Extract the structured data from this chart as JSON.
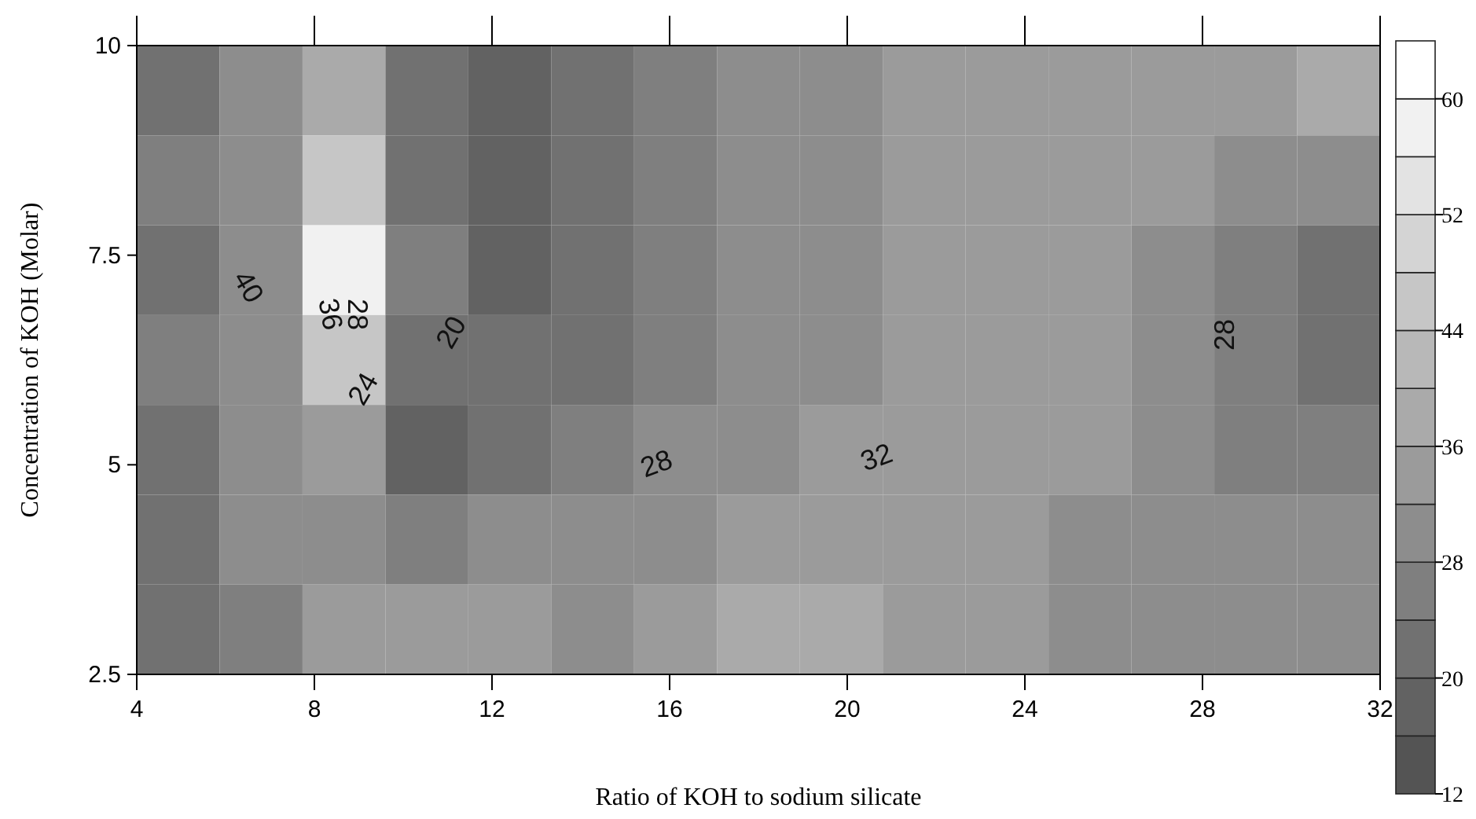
{
  "chart_data": {
    "type": "heatmap",
    "xlabel": "Ratio of KOH to sodium silicate",
    "ylabel": "Concentration of KOH (Molar)",
    "xlim": [
      4,
      32
    ],
    "xticks": [
      4,
      8,
      12,
      16,
      20,
      24,
      28,
      32
    ],
    "ylim": [
      2.5,
      10
    ],
    "yticks": [
      2.5,
      5,
      7.5,
      10
    ],
    "cells": [
      [
        22,
        28,
        36,
        20,
        18,
        22,
        27,
        29,
        31,
        33,
        34,
        34,
        34,
        35,
        37
      ],
      [
        26,
        30,
        44,
        22,
        18,
        22,
        27,
        29,
        31,
        33,
        34,
        34,
        32,
        30,
        28
      ],
      [
        22,
        31,
        56,
        24,
        19,
        23,
        27,
        29,
        31,
        33,
        34,
        33,
        30,
        26,
        22
      ],
      [
        26,
        31,
        44,
        22,
        22,
        23,
        27,
        29,
        31,
        33,
        34,
        33,
        29,
        25,
        23
      ],
      [
        22,
        30,
        34,
        18,
        22,
        24,
        28,
        30,
        32,
        32,
        33,
        33,
        29,
        26,
        25
      ],
      [
        21,
        28,
        30,
        26,
        28,
        28,
        31,
        34,
        34,
        33,
        33,
        31,
        29,
        28,
        28
      ],
      [
        21,
        27,
        34,
        34,
        32,
        31,
        33,
        37,
        38,
        34,
        33,
        30,
        28,
        28,
        28
      ]
    ],
    "clim": [
      12,
      64
    ],
    "cticks": [
      12,
      20,
      28,
      36,
      44,
      52,
      60
    ],
    "annotations": [
      "40",
      "36",
      "28",
      "20",
      "24",
      "28",
      "32",
      "28"
    ]
  }
}
